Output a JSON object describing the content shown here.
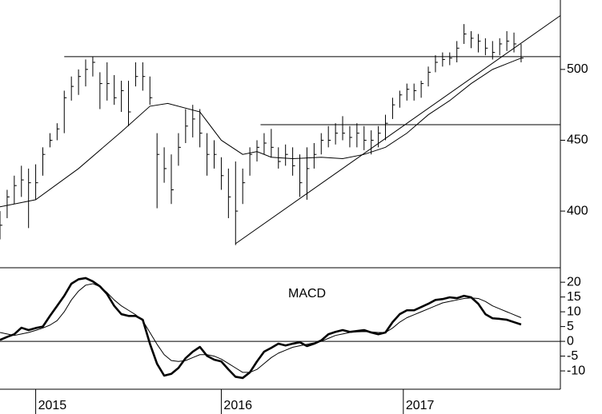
{
  "chart_data": [
    {
      "type": "ohlc",
      "color": "#000000",
      "x": [
        0,
        2,
        4,
        6,
        8,
        10,
        12,
        14,
        16,
        18,
        20,
        22,
        24,
        26,
        28,
        30,
        32,
        34,
        36,
        38,
        40,
        42,
        44,
        46,
        48,
        50,
        52,
        54,
        56,
        58,
        60,
        62,
        64,
        66,
        68,
        70,
        72,
        74,
        76,
        78,
        80,
        82,
        84,
        86,
        88,
        90,
        92,
        94,
        96,
        98,
        100,
        102,
        104,
        106,
        108,
        110,
        112,
        114,
        116,
        118,
        120,
        122,
        124,
        126,
        128,
        130,
        132,
        134,
        136,
        138,
        140,
        142,
        144,
        146
      ],
      "high": [
        400,
        415,
        425,
        432,
        430,
        433,
        445,
        455,
        462,
        485,
        495,
        500,
        507,
        509,
        498,
        505,
        496,
        492,
        492,
        505,
        505,
        495,
        455,
        445,
        440,
        455,
        472,
        475,
        472,
        455,
        450,
        438,
        430,
        435,
        430,
        445,
        450,
        455,
        458,
        445,
        447,
        445,
        440,
        445,
        448,
        455,
        460,
        462,
        467,
        460,
        462,
        460,
        457,
        460,
        468,
        480,
        485,
        490,
        490,
        492,
        502,
        510,
        512,
        512,
        520,
        532,
        527,
        525,
        522,
        520,
        522,
        527,
        526,
        518
      ],
      "low": [
        380,
        395,
        405,
        410,
        388,
        408,
        425,
        445,
        450,
        455,
        478,
        482,
        488,
        495,
        472,
        478,
        475,
        470,
        460,
        488,
        485,
        475,
        402,
        420,
        405,
        432,
        448,
        452,
        445,
        425,
        430,
        415,
        395,
        376,
        405,
        425,
        435,
        440,
        438,
        430,
        432,
        425,
        410,
        408,
        430,
        440,
        445,
        447,
        450,
        445,
        445,
        443,
        440,
        445,
        450,
        465,
        473,
        478,
        478,
        480,
        488,
        498,
        502,
        503,
        505,
        518,
        515,
        512,
        510,
        507,
        510,
        513,
        512,
        505
      ],
      "close": [
        390,
        410,
        418,
        422,
        420,
        420,
        440,
        450,
        458,
        480,
        488,
        495,
        500,
        505,
        490,
        490,
        480,
        485,
        470,
        495,
        495,
        480,
        440,
        430,
        415,
        445,
        460,
        465,
        455,
        440,
        440,
        425,
        410,
        400,
        420,
        440,
        445,
        448,
        445,
        435,
        440,
        432,
        420,
        430,
        440,
        450,
        450,
        455,
        455,
        452,
        455,
        450,
        450,
        455,
        462,
        475,
        482,
        486,
        485,
        490,
        498,
        505,
        507,
        508,
        515,
        525,
        522,
        520,
        515,
        512,
        518,
        520,
        518,
        508
      ],
      "overlays": [
        {
          "x": [
            0,
            10,
            22,
            34,
            42,
            47,
            56,
            62,
            68,
            72,
            76,
            82,
            90,
            96,
            102,
            108,
            114,
            120,
            126,
            132,
            138,
            146
          ],
          "values": [
            403,
            408,
            430,
            456,
            474,
            476,
            470,
            450,
            440,
            442,
            438,
            437,
            438,
            437,
            440,
            445,
            455,
            468,
            478,
            490,
            500,
            508
          ],
          "width": 1
        },
        {
          "x": [
            66,
            157
          ],
          "values": [
            377,
            538
          ],
          "width": 1
        },
        {
          "x": [
            18,
            157
          ],
          "values": [
            509,
            509
          ],
          "width": 1
        },
        {
          "x": [
            73,
            157
          ],
          "values": [
            461,
            461
          ],
          "width": 1
        }
      ],
      "xlim": [
        0,
        157
      ],
      "ylim": [
        360,
        549
      ],
      "yticks": [
        400,
        450,
        500
      ]
    },
    {
      "type": "line",
      "annotation": "MACD",
      "x": [
        0,
        2,
        4,
        6,
        8,
        10,
        12,
        14,
        16,
        18,
        20,
        22,
        24,
        26,
        28,
        30,
        32,
        34,
        36,
        38,
        40,
        42,
        44,
        46,
        48,
        50,
        52,
        54,
        56,
        58,
        60,
        62,
        64,
        66,
        68,
        70,
        72,
        74,
        76,
        78,
        80,
        82,
        84,
        86,
        88,
        90,
        92,
        94,
        96,
        98,
        100,
        102,
        104,
        106,
        108,
        110,
        112,
        114,
        116,
        118,
        120,
        122,
        124,
        126,
        128,
        130,
        132,
        134,
        136,
        138,
        140,
        142,
        144,
        146
      ],
      "series": [
        {
          "color": "#000000",
          "width": 2.6,
          "values": [
            0.5,
            1.5,
            2.4,
            4.6,
            3.8,
            4.5,
            5,
            8.6,
            12,
            15.4,
            19.5,
            21,
            21.4,
            20.3,
            18.6,
            16,
            12,
            9.2,
            8.6,
            8.6,
            7.3,
            -0.8,
            -7.6,
            -11.6,
            -11,
            -9,
            -5.7,
            -3.5,
            -1.9,
            -4.9,
            -6.2,
            -6.8,
            -9.5,
            -12,
            -12.4,
            -10.5,
            -6.8,
            -3.5,
            -2.2,
            -0.8,
            -1.4,
            -0.8,
            -0.3,
            -1.6,
            -0.8,
            0.3,
            2.4,
            3.2,
            3.8,
            3.2,
            3.5,
            3.8,
            3,
            2.4,
            3,
            6.5,
            9.2,
            10.5,
            10.5,
            11.6,
            12.7,
            14,
            14.3,
            14.9,
            14.6,
            15.4,
            14.9,
            12.7,
            9.2,
            7.8,
            7.6,
            7.3,
            6.5,
            5.7
          ]
        },
        {
          "color": "#000000",
          "width": 1,
          "values": [
            3,
            2.5,
            2,
            2.5,
            3,
            3.7,
            4.5,
            5.5,
            7,
            10,
            14,
            17,
            19,
            19.5,
            18.5,
            16.5,
            14,
            12,
            10.5,
            9,
            7,
            3,
            -1,
            -4.5,
            -6.5,
            -6.8,
            -6.5,
            -5.5,
            -4.5,
            -4.5,
            -5,
            -6,
            -7.5,
            -9,
            -10.5,
            -10.5,
            -9.5,
            -7.5,
            -5.5,
            -4,
            -3,
            -2,
            -1.5,
            -1,
            -0.5,
            0,
            1,
            2,
            2.5,
            3,
            3.2,
            3.3,
            3.2,
            3,
            3,
            4.5,
            6.5,
            8,
            9,
            10,
            11,
            12,
            13,
            13.5,
            14,
            14.5,
            14.7,
            14.5,
            13.5,
            12,
            11,
            10,
            9,
            8
          ]
        }
      ],
      "xlim": [
        0,
        157
      ],
      "ylim": [
        -16.2,
        24.9
      ],
      "yticks": [
        -10,
        -5,
        0,
        5,
        10,
        15,
        20
      ],
      "xticks": [
        {
          "value": 10,
          "label": "2015"
        },
        {
          "value": 62,
          "label": "2016"
        },
        {
          "value": 113,
          "label": "2017"
        }
      ]
    }
  ]
}
